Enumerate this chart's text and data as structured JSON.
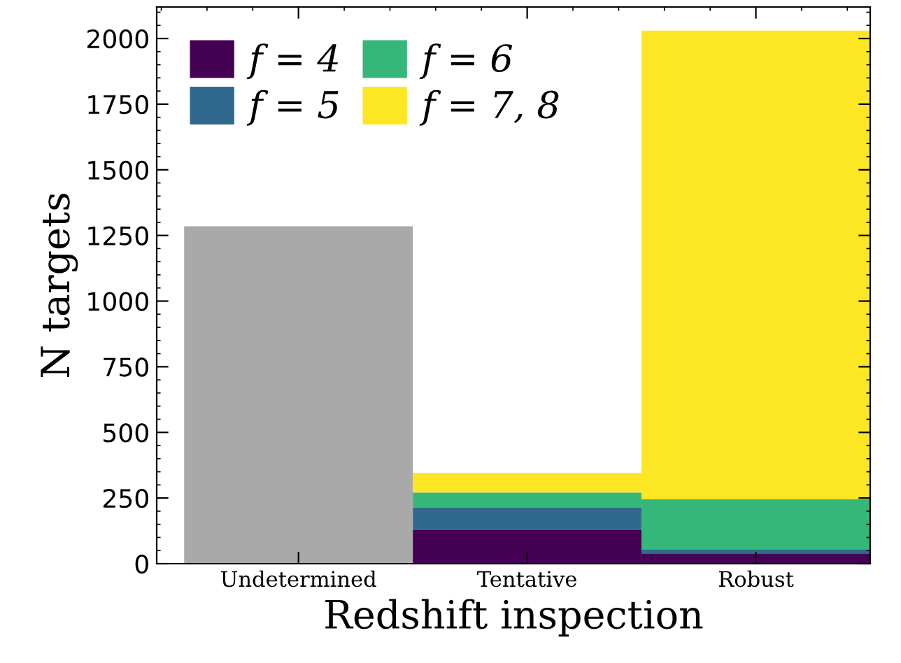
{
  "chart_data": {
    "type": "bar",
    "stacked": true,
    "xlabel": "Redshift inspection",
    "ylabel": "N targets",
    "categories": [
      "Undetermined",
      "Tentative",
      "Robust"
    ],
    "series": [
      {
        "color": "#a9a9a9",
        "values": [
          1285,
          null,
          null
        ]
      },
      {
        "name": "f = 4",
        "color": "#440154",
        "values": [
          null,
          128,
          39
        ]
      },
      {
        "name": "f = 5",
        "color": "#31688e",
        "values": [
          null,
          85,
          14
        ]
      },
      {
        "name": "f = 6",
        "color": "#35b779",
        "values": [
          null,
          58,
          192
        ]
      },
      {
        "name": "f = 7, 8",
        "color": "#fde725",
        "values": [
          null,
          75,
          1785
        ]
      }
    ],
    "ylim": [
      0,
      2120
    ],
    "yticks": [
      0,
      250,
      500,
      750,
      1000,
      1250,
      1500,
      1750,
      2000
    ],
    "grid": false,
    "legend": "top left"
  }
}
